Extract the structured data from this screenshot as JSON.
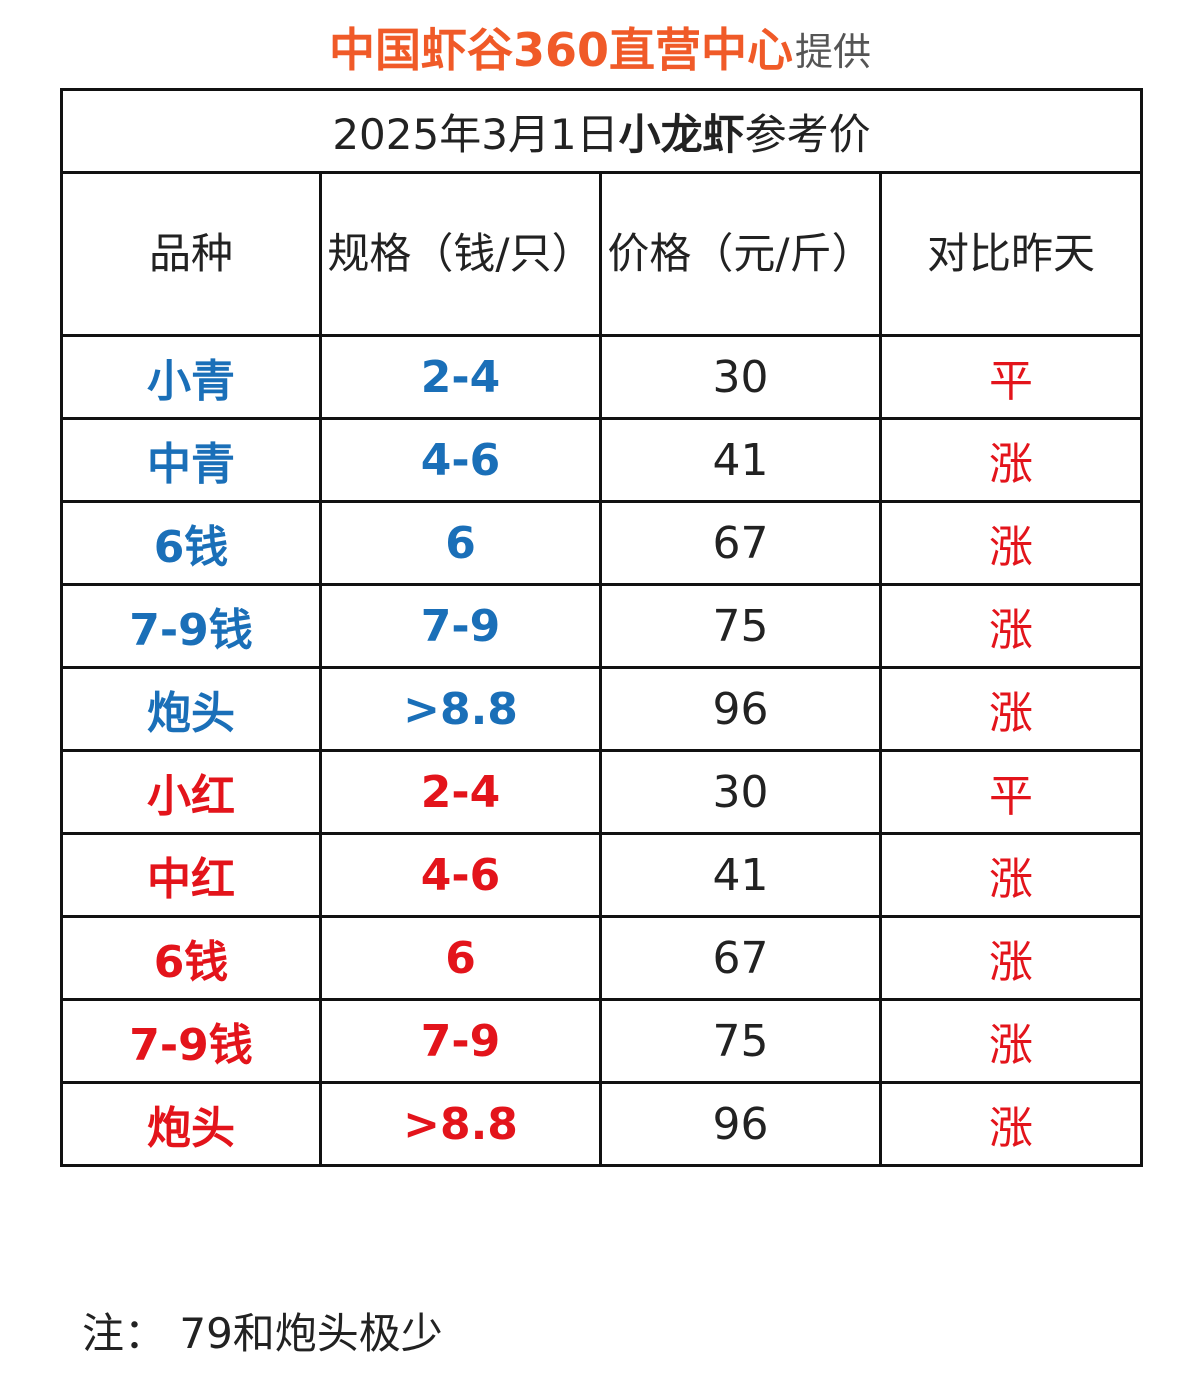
{
  "header": {
    "brand": "中国虾谷360直营中心",
    "suffix": "提供",
    "brand_color": "#f05a28"
  },
  "table": {
    "title_prefix": "2025年3月1日",
    "title_bold": "小龙虾",
    "title_suffix": "参考价",
    "columns": [
      "品种",
      "规格（钱/只）",
      "价格（元/斤）",
      "对比昨天"
    ],
    "rows": [
      {
        "variety": "小青",
        "spec": "2-4",
        "price": "30",
        "change": "平",
        "group": "blue"
      },
      {
        "variety": "中青",
        "spec": "4-6",
        "price": "41",
        "change": "涨",
        "group": "blue"
      },
      {
        "variety": "6钱",
        "spec": "6",
        "price": "67",
        "change": "涨",
        "group": "blue"
      },
      {
        "variety": "7-9钱",
        "spec": "7-9",
        "price": "75",
        "change": "涨",
        "group": "blue"
      },
      {
        "variety": "炮头",
        "spec": ">8.8",
        "price": "96",
        "change": "涨",
        "group": "blue"
      },
      {
        "variety": "小红",
        "spec": "2-4",
        "price": "30",
        "change": "平",
        "group": "red"
      },
      {
        "variety": "中红",
        "spec": "4-6",
        "price": "41",
        "change": "涨",
        "group": "red"
      },
      {
        "variety": "6钱",
        "spec": "6",
        "price": "67",
        "change": "涨",
        "group": "red"
      },
      {
        "variety": "7-9钱",
        "spec": "7-9",
        "price": "75",
        "change": "涨",
        "group": "red"
      },
      {
        "variety": "炮头",
        "spec": ">8.8",
        "price": "96",
        "change": "涨",
        "group": "red"
      }
    ],
    "colors": {
      "blue": "#1a6fb8",
      "red": "#e3141b"
    }
  },
  "note": "注：  79和炮头极少"
}
